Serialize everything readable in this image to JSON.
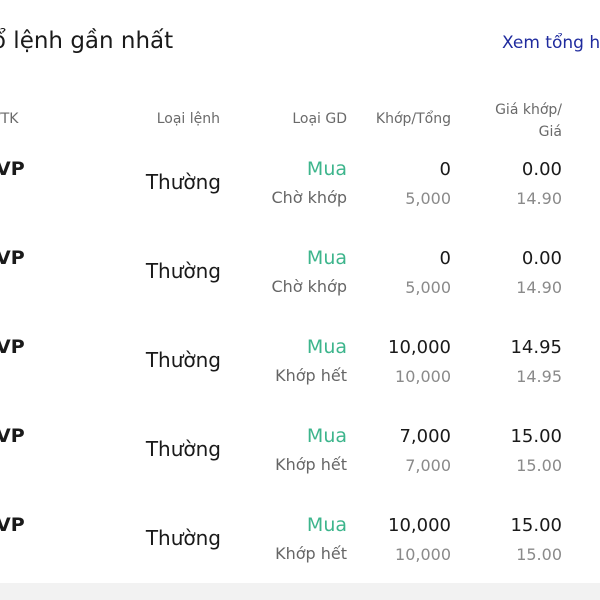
{
  "header": {
    "title": "ổ lệnh gần nhất",
    "view_all": "Xem tổng h"
  },
  "columns": [
    "/TK",
    "Loại lệnh",
    "Loại GD",
    "Khớp/Tổng",
    "Giá khớp/",
    "Giá"
  ],
  "colors": {
    "buy": "#3db58c",
    "link": "#1f2b9e"
  },
  "rows": [
    {
      "symbol": "VP",
      "order_type": "Thường",
      "side": "Mua",
      "status": "Chờ khớp",
      "matched": "0",
      "total": "5,000",
      "match_price": "0.00",
      "price": "14.90"
    },
    {
      "symbol": "VP",
      "order_type": "Thường",
      "side": "Mua",
      "status": "Chờ khớp",
      "matched": "0",
      "total": "5,000",
      "match_price": "0.00",
      "price": "14.90"
    },
    {
      "symbol": "VP",
      "order_type": "Thường",
      "side": "Mua",
      "status": "Khớp hết",
      "matched": "10,000",
      "total": "10,000",
      "match_price": "14.95",
      "price": "14.95"
    },
    {
      "symbol": "VP",
      "order_type": "Thường",
      "side": "Mua",
      "status": "Khớp hết",
      "matched": "7,000",
      "total": "7,000",
      "match_price": "15.00",
      "price": "15.00"
    },
    {
      "symbol": "VP",
      "order_type": "Thường",
      "side": "Mua",
      "status": "Khớp hết",
      "matched": "10,000",
      "total": "10,000",
      "match_price": "15.00",
      "price": "15.00"
    }
  ]
}
